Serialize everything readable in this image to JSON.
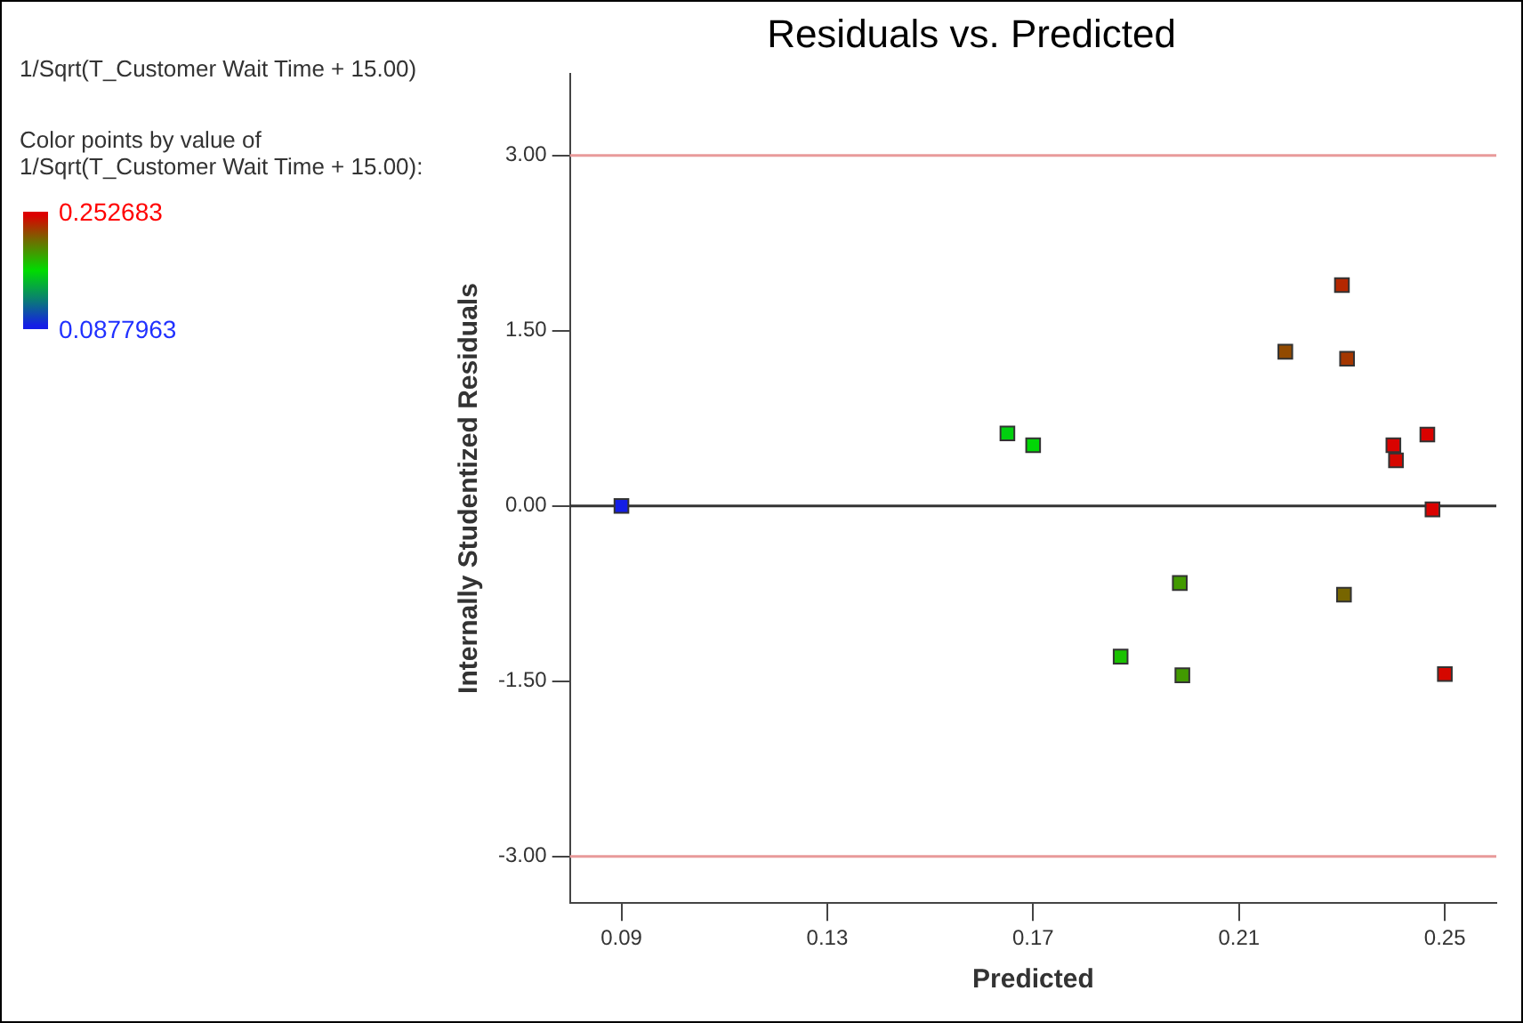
{
  "chart_data": {
    "type": "scatter",
    "title": "Residuals vs. Predicted",
    "xlabel": "Predicted",
    "ylabel": "Internally Studentized Residuals",
    "clabel": "Color points by value of\n1/Sqrt(T_Customer Wait Time + 15.00):",
    "annotations": [
      "1/Sqrt(T_Customer Wait Time + 15.00)"
    ],
    "x": [
      0.09,
      0.165,
      0.17,
      0.219,
      0.23,
      0.231,
      0.24,
      0.2405,
      0.2466,
      0.2476,
      0.1985,
      0.2304,
      0.187,
      0.199,
      0.25
    ],
    "values": [
      0.0,
      0.62,
      0.52,
      1.32,
      1.89,
      1.26,
      0.52,
      0.39,
      0.61,
      -0.03,
      -0.66,
      -0.76,
      -1.29,
      -1.45,
      -1.44
    ],
    "cvalues": [
      0.0878,
      0.165,
      0.168,
      0.225,
      0.238,
      0.232,
      0.252,
      0.25,
      0.252,
      0.252,
      0.195,
      0.215,
      0.18,
      0.195,
      0.25
    ],
    "clim": [
      0.0877963,
      0.252683
    ],
    "cticks": [
      {
        "value": 0.252683,
        "label": "0.252683"
      },
      {
        "value": 0.0877963,
        "label": "0.0877963"
      }
    ],
    "xlim": [
      0.08,
      0.26
    ],
    "xticks": [
      0.09,
      0.13,
      0.17,
      0.21,
      0.25
    ],
    "ylim": [
      -3.4,
      3.7
    ],
    "yticks": [
      {
        "value": -3,
        "label": "-3.00"
      },
      {
        "value": -1.5,
        "label": "-1.50"
      },
      {
        "value": 0,
        "label": "0.00"
      },
      {
        "value": 1.5,
        "label": "1.50"
      },
      {
        "value": 3,
        "label": "3.00"
      }
    ],
    "ref_lines": [
      {
        "axis": "y",
        "value": 3,
        "color": "#e89a9a"
      },
      {
        "axis": "y",
        "value": 0,
        "color": "#333333"
      },
      {
        "axis": "y",
        "value": -3,
        "color": "#e89a9a"
      }
    ],
    "marker": "square",
    "grid": false,
    "legend": false
  }
}
